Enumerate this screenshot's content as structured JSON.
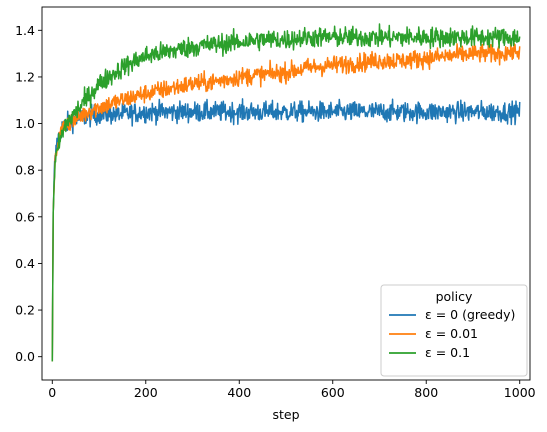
{
  "chart_data": {
    "type": "line",
    "title": "",
    "xlabel": "step",
    "ylabel": "",
    "xlim": [
      -22,
      1022
    ],
    "ylim": [
      -0.1,
      1.5
    ],
    "xticks": [
      0,
      200,
      400,
      600,
      800,
      1000
    ],
    "yticks": [
      0.0,
      0.2,
      0.4,
      0.6,
      0.8,
      1.0,
      1.2,
      1.4
    ],
    "ytick_labels": [
      "0.0",
      "0.2",
      "0.4",
      "0.6",
      "0.8",
      "1.0",
      "1.2",
      "1.4"
    ],
    "grid": false,
    "legend": {
      "title": "policy",
      "placement": "lower-right"
    },
    "series": [
      {
        "name": "ε = 0 (greedy)",
        "color": "#1f77b4",
        "x": [
          0,
          2,
          5,
          10,
          20,
          30,
          50,
          75,
          100,
          150,
          200,
          250,
          300,
          350,
          400,
          450,
          500,
          550,
          600,
          650,
          700,
          750,
          800,
          850,
          900,
          950,
          1000
        ],
        "y": [
          -0.02,
          0.62,
          0.82,
          0.92,
          0.98,
          1.0,
          1.02,
          1.03,
          1.04,
          1.04,
          1.05,
          1.05,
          1.05,
          1.05,
          1.05,
          1.05,
          1.05,
          1.05,
          1.05,
          1.05,
          1.05,
          1.05,
          1.05,
          1.05,
          1.05,
          1.05,
          1.05
        ],
        "noise": 0.022
      },
      {
        "name": "ε = 0.01",
        "color": "#ff7f0e",
        "x": [
          0,
          2,
          5,
          10,
          20,
          30,
          50,
          75,
          100,
          150,
          200,
          250,
          300,
          350,
          400,
          450,
          500,
          550,
          600,
          650,
          700,
          750,
          800,
          850,
          900,
          950,
          1000
        ],
        "y": [
          -0.02,
          0.62,
          0.8,
          0.9,
          0.97,
          1.0,
          1.02,
          1.05,
          1.07,
          1.1,
          1.13,
          1.15,
          1.17,
          1.18,
          1.2,
          1.21,
          1.22,
          1.24,
          1.25,
          1.26,
          1.27,
          1.27,
          1.28,
          1.29,
          1.3,
          1.3,
          1.31
        ],
        "noise": 0.02
      },
      {
        "name": "ε = 0.1",
        "color": "#2ca02c",
        "x": [
          0,
          2,
          5,
          10,
          20,
          30,
          50,
          75,
          100,
          150,
          200,
          250,
          300,
          350,
          400,
          450,
          500,
          550,
          600,
          650,
          700,
          750,
          800,
          850,
          900,
          950,
          1000
        ],
        "y": [
          -0.02,
          0.62,
          0.79,
          0.88,
          0.95,
          1.0,
          1.05,
          1.11,
          1.17,
          1.24,
          1.29,
          1.31,
          1.33,
          1.34,
          1.35,
          1.36,
          1.36,
          1.37,
          1.37,
          1.37,
          1.37,
          1.37,
          1.37,
          1.37,
          1.37,
          1.37,
          1.37
        ],
        "noise": 0.022
      }
    ]
  }
}
